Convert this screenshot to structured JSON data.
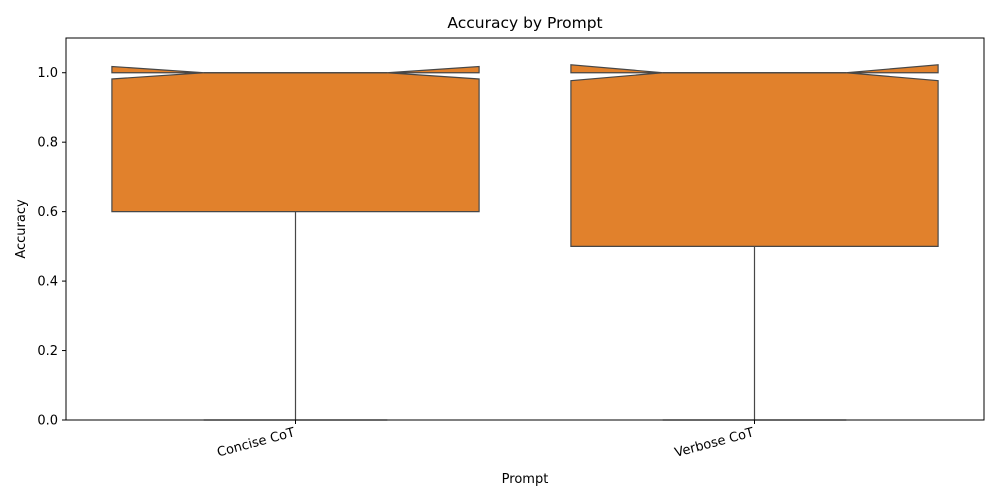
{
  "chart_data": {
    "type": "box",
    "title": "Accuracy by Prompt",
    "xlabel": "Prompt",
    "ylabel": "Accuracy",
    "ylim": [
      0,
      1.1
    ],
    "yticks": [
      0.0,
      0.2,
      0.4,
      0.6,
      0.8,
      1.0
    ],
    "ytick_labels": [
      "0.0",
      "0.2",
      "0.4",
      "0.6",
      "0.8",
      "1.0"
    ],
    "notched": true,
    "grid": false,
    "categories": [
      "Concise CoT",
      "Verbose CoT"
    ],
    "boxes": [
      {
        "category": "Concise CoT",
        "whisker_low": 0.0,
        "q1": 0.6,
        "median": 1.0,
        "q3": 1.0,
        "notch_low": 0.982,
        "notch_high": 1.018,
        "whisker_high": 1.0
      },
      {
        "category": "Verbose CoT",
        "whisker_low": 0.0,
        "q1": 0.5,
        "median": 1.0,
        "q3": 1.0,
        "notch_low": 0.977,
        "notch_high": 1.023,
        "whisker_high": 1.0
      }
    ],
    "colors": {
      "box_fill": "#e1812c",
      "edge": "#474747"
    }
  }
}
